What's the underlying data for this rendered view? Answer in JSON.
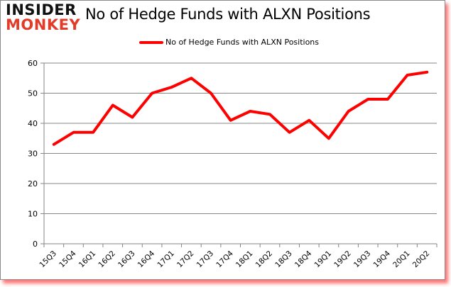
{
  "logo": {
    "line1": "INSIDER",
    "line2": "MONKEY"
  },
  "colors": {
    "series": "#ff0000",
    "grid": "#868686",
    "logo_red": "#e23b2a",
    "glow": "#ff0000"
  },
  "chart_data": {
    "type": "line",
    "title": "No of Hedge Funds with ALXN Positions",
    "xlabel": "",
    "ylabel": "",
    "ylim": [
      0,
      60
    ],
    "yticks": [
      0,
      10,
      20,
      30,
      40,
      50,
      60
    ],
    "grid": true,
    "legend_position": "top",
    "categories": [
      "15Q3",
      "15Q4",
      "16Q1",
      "16Q2",
      "16Q3",
      "16Q4",
      "17Q1",
      "17Q2",
      "17Q3",
      "17Q4",
      "18Q1",
      "18Q2",
      "18Q3",
      "18Q4",
      "19Q1",
      "19Q2",
      "19Q3",
      "19Q4",
      "20Q1",
      "20Q2"
    ],
    "series": [
      {
        "name": "No of Hedge Funds with ALXN Positions",
        "color": "#ff0000",
        "values": [
          33,
          37,
          37,
          46,
          42,
          50,
          52,
          55,
          50,
          41,
          44,
          43,
          37,
          41,
          35,
          44,
          48,
          48,
          56,
          57
        ]
      }
    ]
  }
}
